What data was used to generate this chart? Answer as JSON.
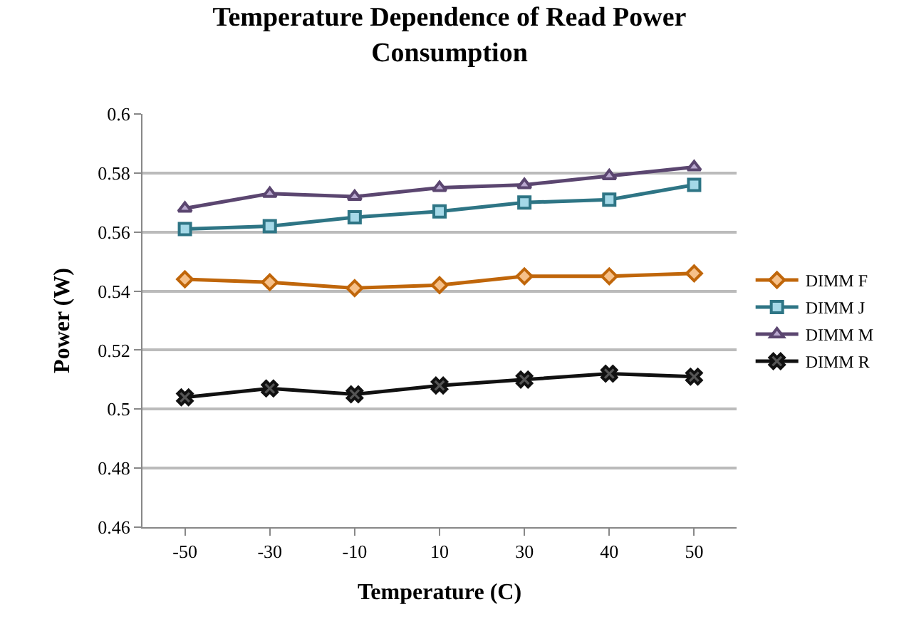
{
  "chart_data": {
    "type": "line",
    "title": "Temperature Dependence of Read Power Consumption",
    "xlabel": "Temperature (C)",
    "ylabel": "Power (W)",
    "categories": [
      "-50",
      "-30",
      "-10",
      "10",
      "30",
      "40",
      "50"
    ],
    "series": [
      {
        "name": "DIMM F",
        "color": "#c0660a",
        "marker": "diamond",
        "values": [
          0.544,
          0.543,
          0.541,
          0.542,
          0.545,
          0.545,
          0.546
        ]
      },
      {
        "name": "DIMM J",
        "color": "#2e7585",
        "marker": "square",
        "values": [
          0.561,
          0.562,
          0.565,
          0.567,
          0.57,
          0.571,
          0.576
        ]
      },
      {
        "name": "DIMM M",
        "color": "#5b4670",
        "marker": "triangle",
        "values": [
          0.568,
          0.573,
          0.572,
          0.575,
          0.576,
          0.579,
          0.582
        ]
      },
      {
        "name": "DIMM R",
        "color": "#111111",
        "marker": "cross",
        "values": [
          0.504,
          0.507,
          0.505,
          0.508,
          0.51,
          0.512,
          0.511
        ]
      }
    ],
    "ylim": [
      0.46,
      0.6
    ],
    "yticks": [
      0.46,
      0.48,
      0.5,
      0.52,
      0.54,
      0.56,
      0.58,
      0.6
    ],
    "grid": "y",
    "legend": "right",
    "line_style": "solid"
  }
}
